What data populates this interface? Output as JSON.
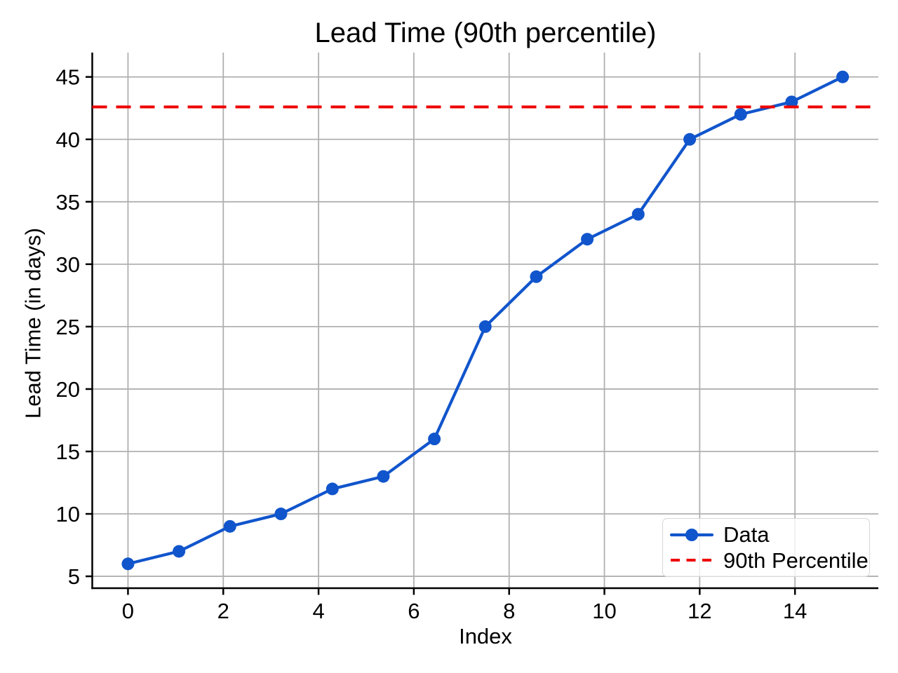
{
  "chart_data": {
    "type": "line",
    "title": "Lead Time (90th percentile)",
    "xlabel": "Index",
    "ylabel": "Lead Time (in days)",
    "series": [
      {
        "name": "Data",
        "style": "solid-line-with-circle-markers",
        "color": "#1155cc",
        "x": [
          0,
          1.07,
          2.14,
          3.21,
          4.29,
          5.36,
          6.43,
          7.5,
          8.57,
          9.64,
          10.71,
          11.79,
          12.86,
          13.93,
          15
        ],
        "y": [
          6,
          7,
          9,
          10,
          12,
          13,
          16,
          25,
          29,
          32,
          34,
          40,
          42,
          43,
          45
        ]
      },
      {
        "name": "90th Percentile",
        "style": "horizontal-dashed-line",
        "color": "#ee0000",
        "y": 42.6
      }
    ],
    "xticks": [
      0,
      2,
      4,
      6,
      8,
      10,
      12,
      14
    ],
    "yticks": [
      5,
      10,
      15,
      20,
      25,
      30,
      35,
      40,
      45
    ],
    "xlim": [
      -0.75,
      15.75
    ],
    "ylim": [
      4.05,
      46.95
    ],
    "grid": true,
    "legend": {
      "position": "lower-right"
    },
    "colors": {
      "data_line": "#1155cc",
      "percentile_line": "#ee0000",
      "grid": "#b0b0b0",
      "spine": "#000000",
      "text": "#000000",
      "legend_border": "#d7d7d7",
      "background": "#ffffff"
    }
  }
}
